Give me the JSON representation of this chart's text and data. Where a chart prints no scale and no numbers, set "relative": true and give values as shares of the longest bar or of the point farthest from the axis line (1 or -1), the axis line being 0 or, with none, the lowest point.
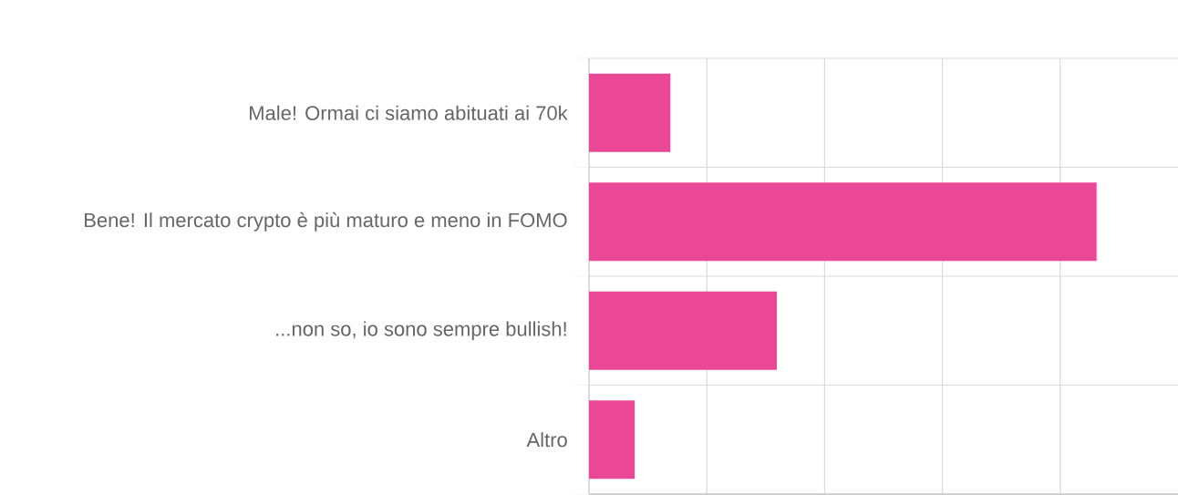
{
  "chart_data": {
    "type": "bar",
    "orientation": "horizontal",
    "relative": true,
    "categories": [
      "Male! Ormai ci siamo abituati ai 70k",
      "Bene! Il mercato crypto è più maturo e meno in FOMO",
      "...non so, io sono sempre bullish!",
      "Altro"
    ],
    "values": [
      0.16,
      1,
      0.37,
      0.09
    ],
    "color": "#ea4896",
    "grid": true
  }
}
